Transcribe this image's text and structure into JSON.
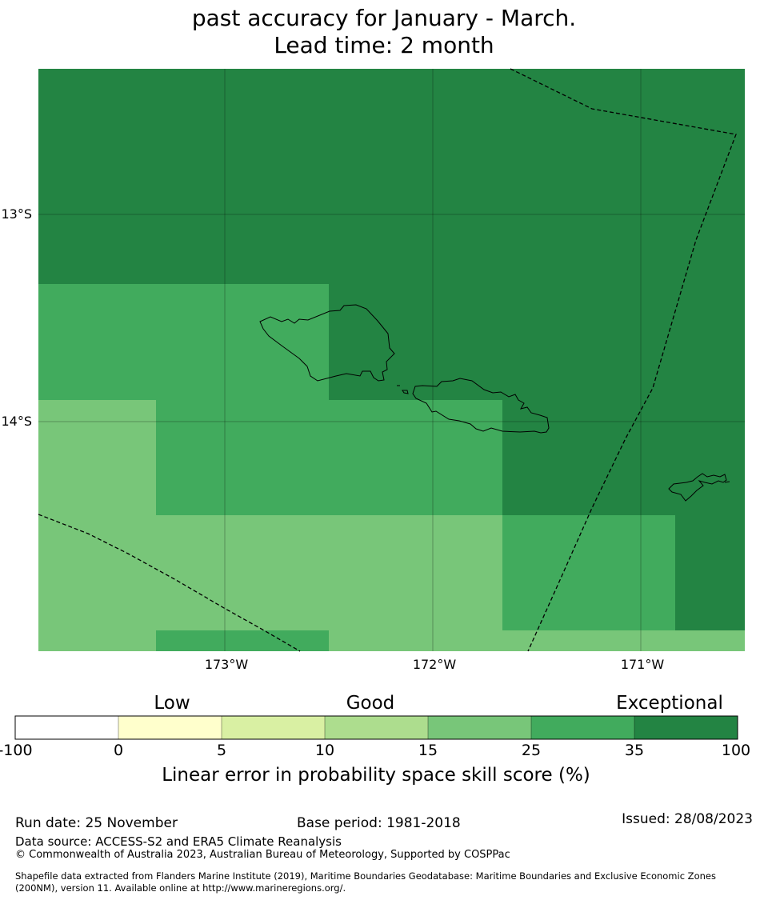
{
  "title": {
    "line1": "past accuracy for January - March.",
    "line2": "Lead time: 2 month"
  },
  "map": {
    "x_ticks": [
      "173°W",
      "172°W",
      "171°W"
    ],
    "y_ticks": [
      "13°S",
      "14°S"
    ],
    "legend_colors": {
      "lt0": "#ffffff",
      "c0_5": "#ffffcc",
      "c5_10": "#d9f0a3",
      "c10_15": "#addd8e",
      "c15_25": "#78c679",
      "c25_35": "#41ab5d",
      "c35_100": "#238443"
    }
  },
  "colorbar": {
    "categories": [
      "Low",
      "Good",
      "Exceptional"
    ],
    "ticks": [
      "-100",
      "0",
      "5",
      "10",
      "15",
      "25",
      "35",
      "100"
    ],
    "label": "Linear error in probability space skill score (%)"
  },
  "footer": {
    "run_date": "Run date: 25 November",
    "base_period": "Base period: 1981-2018",
    "issued": "Issued: 28/08/2023",
    "data_source": "Data source: ACCESS-S2 and ERA5 Climate Reanalysis",
    "copyright": "© Commonwealth of Australia 2023, Australian Bureau of Meteorology, Supported by COSPPac",
    "shapefile_1": "Shapefile data extracted from Flanders Marine Institute (2019), Maritime Boundaries Geodatabase: Maritime Boundaries and Exclusive Economic Zones",
    "shapefile_2": "(200NM), version 11. Available online at http://www.marineregions.org/."
  }
}
